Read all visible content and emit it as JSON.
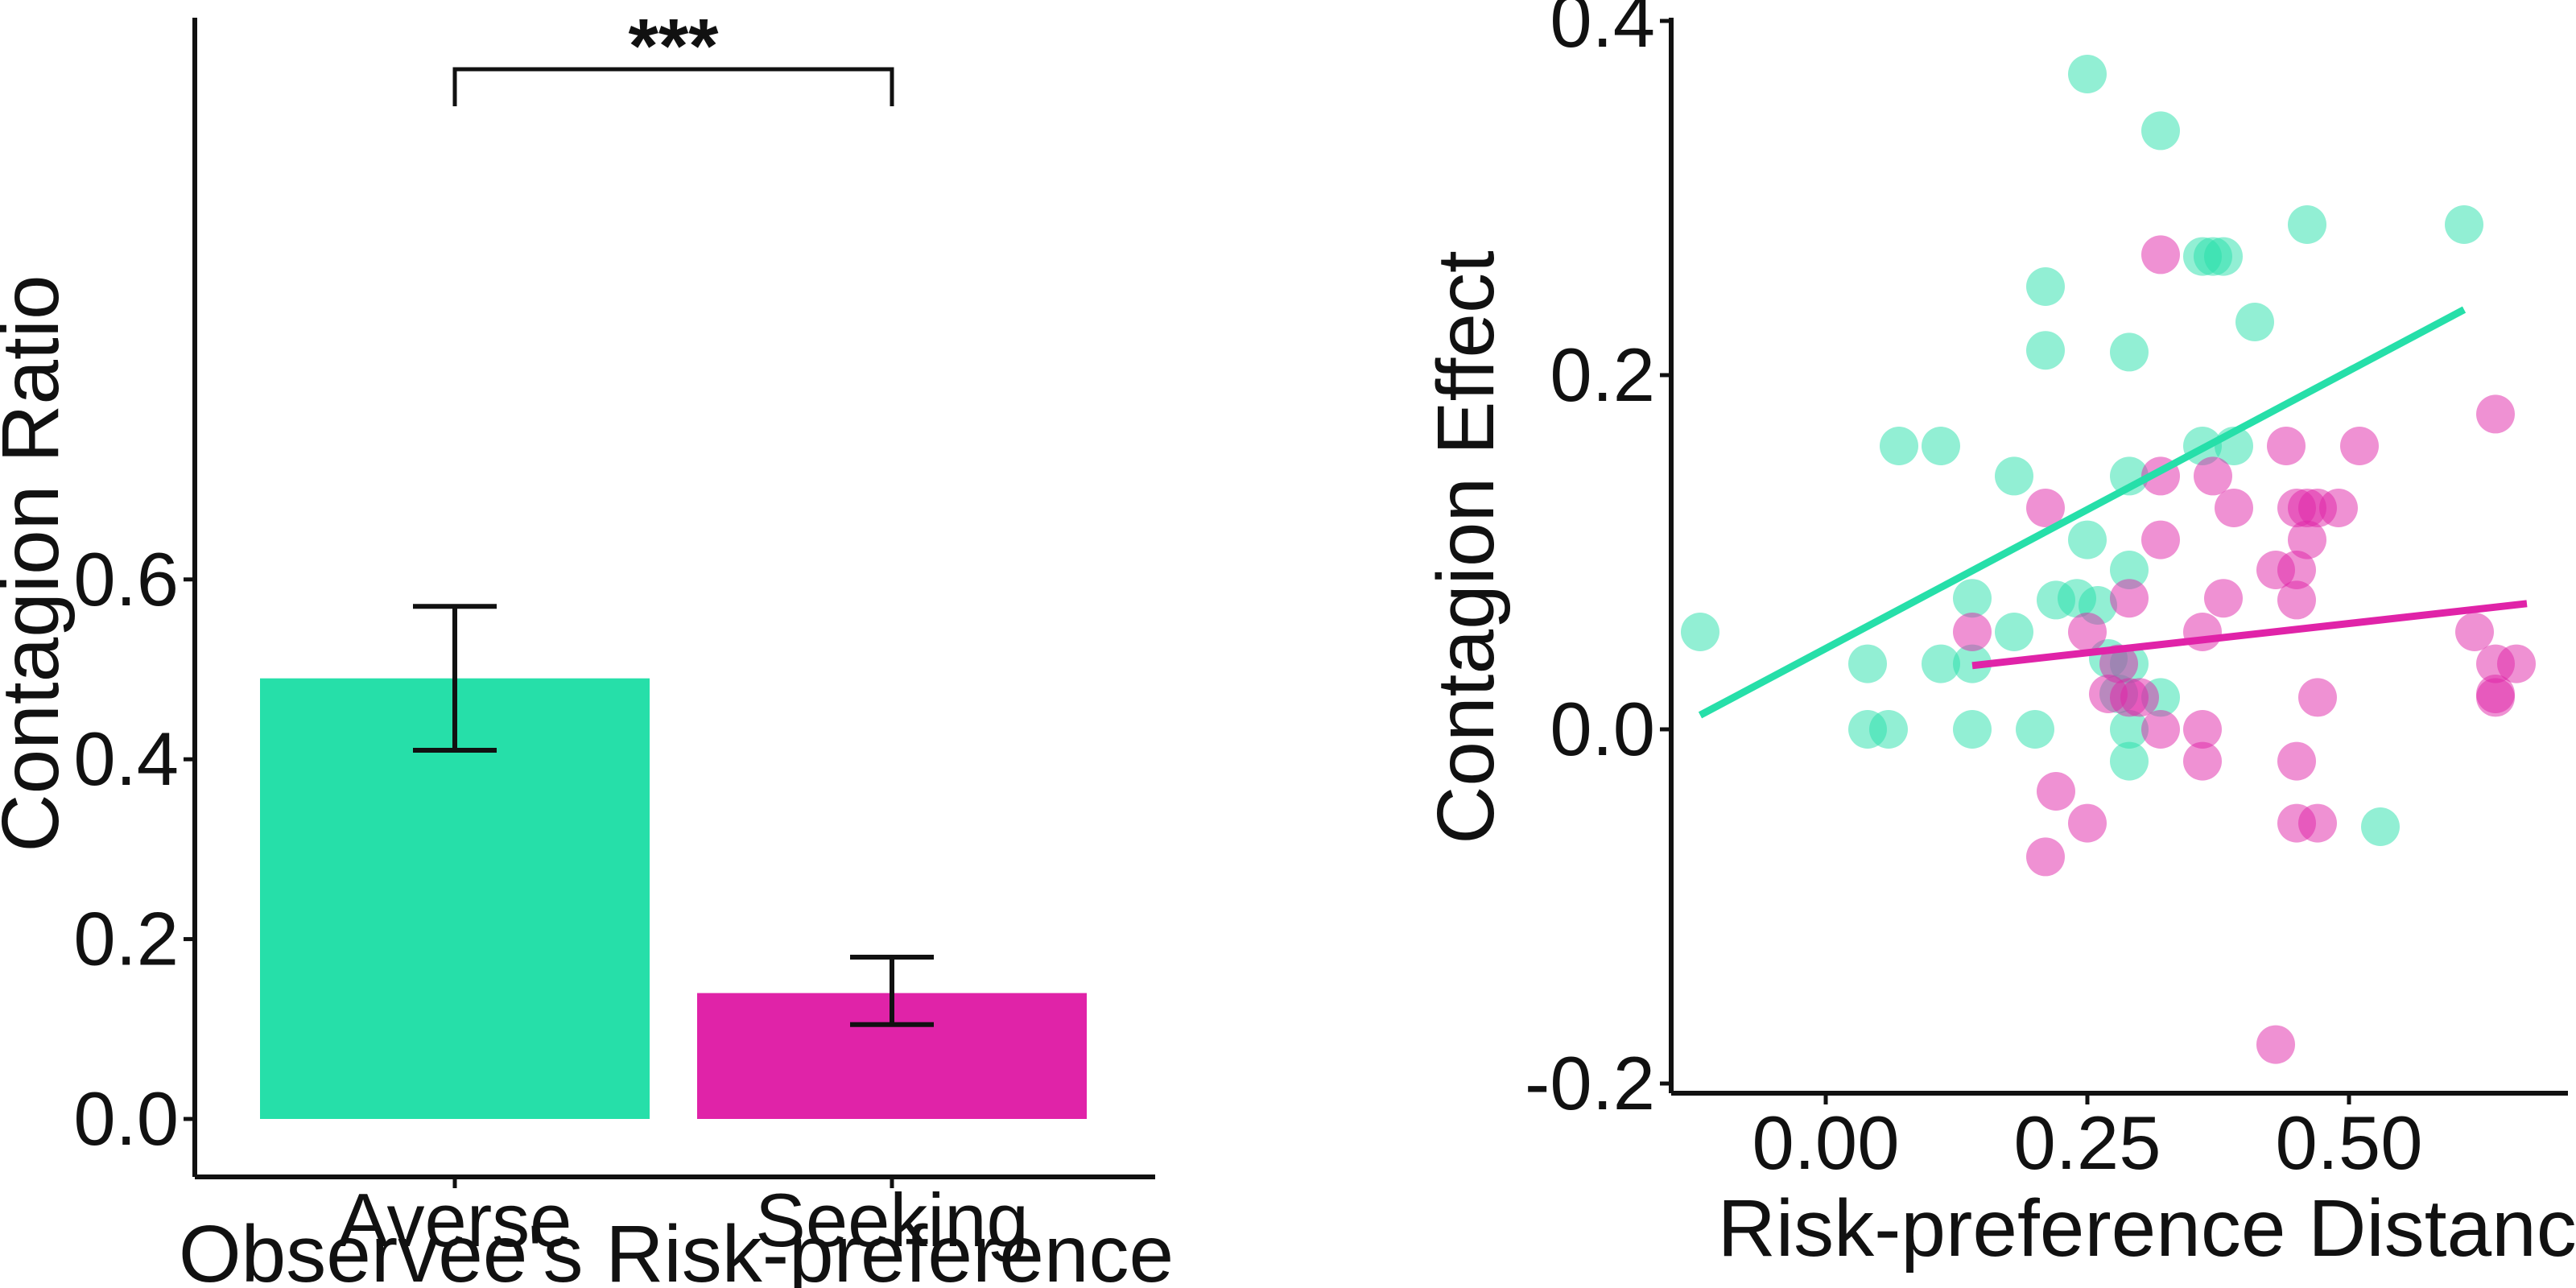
{
  "chart_data": [
    {
      "type": "bar",
      "ylabel": "Contagion Ratio",
      "xlabel": "Observee's Risk-preference",
      "categories": [
        "Averse",
        "Seeking"
      ],
      "values": [
        0.49,
        0.14
      ],
      "error_low": [
        0.41,
        0.105
      ],
      "error_high": [
        0.57,
        0.18
      ],
      "colors": [
        "#26DFA9",
        "#E023A8"
      ],
      "ylim": [
        0,
        0.73
      ],
      "yticks": [
        "0.0",
        "0.2",
        "0.4",
        "0.6"
      ],
      "significance": "***",
      "grid": false
    },
    {
      "type": "scatter",
      "ylabel": "Contagion Effect",
      "xlabel": "Risk-preference Distance",
      "xlim": [
        -0.13,
        0.71
      ],
      "ylim": [
        -0.21,
        0.4
      ],
      "xticks": [
        "0.00",
        "0.25",
        "0.50"
      ],
      "yticks": [
        "-0.2",
        "0.0",
        "0.2",
        "0.4"
      ],
      "grid": false,
      "series": [
        {
          "color": "#26DFA9",
          "points": [
            [
              -0.12,
              0.055
            ],
            [
              0.04,
              0.037
            ],
            [
              0.04,
              0.0
            ],
            [
              0.06,
              0.0
            ],
            [
              0.07,
              0.16
            ],
            [
              0.11,
              0.16
            ],
            [
              0.11,
              0.037
            ],
            [
              0.14,
              0.074
            ],
            [
              0.14,
              0.037
            ],
            [
              0.14,
              0.0
            ],
            [
              0.18,
              0.143
            ],
            [
              0.18,
              0.055
            ],
            [
              0.2,
              0.0
            ],
            [
              0.21,
              0.25
            ],
            [
              0.21,
              0.214
            ],
            [
              0.22,
              0.073
            ],
            [
              0.24,
              0.074
            ],
            [
              0.25,
              0.37
            ],
            [
              0.25,
              0.107
            ],
            [
              0.26,
              0.07
            ],
            [
              0.27,
              0.04
            ],
            [
              0.28,
              0.02
            ],
            [
              0.29,
              0.213
            ],
            [
              0.29,
              0.143
            ],
            [
              0.29,
              0.09
            ],
            [
              0.29,
              0.037
            ],
            [
              0.29,
              0.0
            ],
            [
              0.29,
              -0.018
            ],
            [
              0.32,
              0.338
            ],
            [
              0.32,
              0.018
            ],
            [
              0.36,
              0.267
            ],
            [
              0.36,
              0.16
            ],
            [
              0.37,
              0.267
            ],
            [
              0.38,
              0.267
            ],
            [
              0.39,
              0.16
            ],
            [
              0.41,
              0.23
            ],
            [
              0.46,
              0.285
            ],
            [
              0.53,
              -0.055
            ],
            [
              0.61,
              0.285
            ]
          ],
          "fit": [
            [
              -0.12,
              0.008
            ],
            [
              0.61,
              0.237
            ]
          ]
        },
        {
          "color": "#E023A8",
          "points": [
            [
              0.14,
              0.055
            ],
            [
              0.21,
              0.125
            ],
            [
              0.22,
              -0.035
            ],
            [
              0.21,
              -0.072
            ],
            [
              0.25,
              0.055
            ],
            [
              0.25,
              -0.053
            ],
            [
              0.27,
              0.02
            ],
            [
              0.28,
              0.037
            ],
            [
              0.29,
              0.074
            ],
            [
              0.29,
              0.018
            ],
            [
              0.3,
              0.018
            ],
            [
              0.32,
              0.268
            ],
            [
              0.32,
              0.143
            ],
            [
              0.32,
              0.107
            ],
            [
              0.32,
              0.0
            ],
            [
              0.36,
              0.055
            ],
            [
              0.36,
              0.0
            ],
            [
              0.36,
              -0.018
            ],
            [
              0.37,
              0.143
            ],
            [
              0.38,
              0.074
            ],
            [
              0.39,
              0.125
            ],
            [
              0.43,
              0.09
            ],
            [
              0.43,
              -0.178
            ],
            [
              0.44,
              0.16
            ],
            [
              0.45,
              0.125
            ],
            [
              0.45,
              0.09
            ],
            [
              0.45,
              0.073
            ],
            [
              0.45,
              -0.018
            ],
            [
              0.45,
              -0.053
            ],
            [
              0.46,
              0.125
            ],
            [
              0.46,
              0.107
            ],
            [
              0.47,
              0.125
            ],
            [
              0.47,
              0.018
            ],
            [
              0.47,
              -0.053
            ],
            [
              0.49,
              0.125
            ],
            [
              0.51,
              0.16
            ],
            [
              0.62,
              0.055
            ],
            [
              0.64,
              0.178
            ],
            [
              0.64,
              0.037
            ],
            [
              0.64,
              0.018
            ],
            [
              0.64,
              0.02
            ],
            [
              0.66,
              0.037
            ]
          ],
          "fit": [
            [
              0.14,
              0.036
            ],
            [
              0.67,
              0.071
            ]
          ]
        }
      ]
    }
  ]
}
